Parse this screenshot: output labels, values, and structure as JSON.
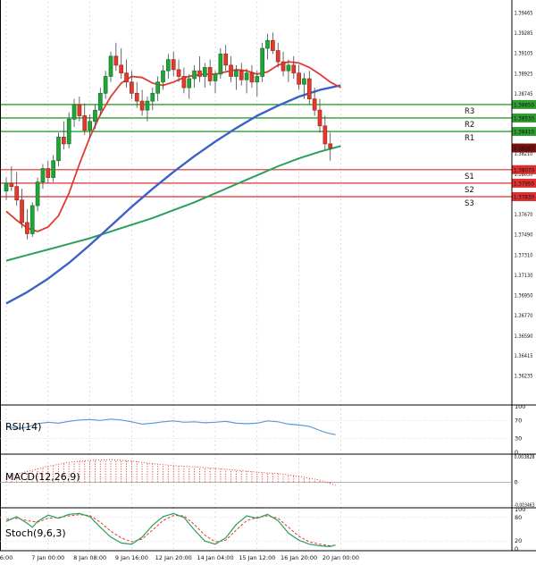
{
  "colors": {
    "up": "#22a437",
    "up_stroke": "#0c7a2c",
    "down": "#e13b2f",
    "down_stroke": "#a3271d",
    "wick": "#444444",
    "resistance": "#2e9e2e",
    "support": "#e02f2f",
    "current_badge": "#7a1010",
    "rsi_line": "#5b9bd5",
    "macd": "#e13b2f",
    "stoch_k": "#2aa05a",
    "stoch_d": "#e13b2f",
    "grid": "#cfcfcf",
    "subgrid": "#c9c9c9",
    "zero_line": "#9a9a9a",
    "separator": "#000000",
    "axis_text": "#111111",
    "badge_text": "#ffffff"
  },
  "chart_data": {
    "type": "candlestick",
    "grid": "vertical-dashed",
    "price_axis": {
      "top_price": 1.3958,
      "bottom_price": 1.36,
      "ticks": [
        1.39465,
        1.39285,
        1.39105,
        1.38925,
        1.38745,
        1.3821,
        1.3803,
        1.3767,
        1.3749,
        1.3731,
        1.3713,
        1.3695,
        1.3677,
        1.3659,
        1.36415,
        1.36235
      ]
    },
    "time_axis": {
      "labels": [
        {
          "i": 0,
          "t": "6:00"
        },
        {
          "i": 8,
          "t": "7 Jan 00:00"
        },
        {
          "i": 16,
          "t": "8 Jan 08:00"
        },
        {
          "i": 24,
          "t": "9 Jan 16:00"
        },
        {
          "i": 32,
          "t": "12 Jan 20:00"
        },
        {
          "i": 40,
          "t": "14 Jan 04:00"
        },
        {
          "i": 48,
          "t": "15 Jan 12:00"
        },
        {
          "i": 56,
          "t": "16 Jan 20:00"
        },
        {
          "i": 64,
          "t": "20 Jan 00:00"
        }
      ]
    },
    "levels": {
      "resistance": [
        {
          "label": "R3",
          "price": 1.3865
        },
        {
          "label": "R2",
          "price": 1.3853
        },
        {
          "label": "R1",
          "price": 1.3841
        }
      ],
      "support": [
        {
          "label": "S1",
          "price": 1.3807
        },
        {
          "label": "S2",
          "price": 1.3795
        },
        {
          "label": "S3",
          "price": 1.3783
        }
      ],
      "current_price": 1.38263
    },
    "candles": [
      [
        1.3788,
        1.38,
        1.378,
        1.3795
      ],
      [
        1.3795,
        1.381,
        1.3788,
        1.3792
      ],
      [
        1.3792,
        1.3805,
        1.3775,
        1.378
      ],
      [
        1.378,
        1.379,
        1.3755,
        1.376
      ],
      [
        1.376,
        1.3772,
        1.3745,
        1.375
      ],
      [
        1.375,
        1.3778,
        1.3747,
        1.3775
      ],
      [
        1.3775,
        1.38,
        1.377,
        1.3796
      ],
      [
        1.3796,
        1.3812,
        1.379,
        1.3808
      ],
      [
        1.3808,
        1.3815,
        1.3795,
        1.38
      ],
      [
        1.38,
        1.382,
        1.3796,
        1.3815
      ],
      [
        1.3815,
        1.384,
        1.381,
        1.3836
      ],
      [
        1.3836,
        1.385,
        1.3825,
        1.383
      ],
      [
        1.383,
        1.3858,
        1.3826,
        1.3852
      ],
      [
        1.3852,
        1.387,
        1.3845,
        1.3865
      ],
      [
        1.3865,
        1.3872,
        1.385,
        1.3855
      ],
      [
        1.3855,
        1.3866,
        1.3838,
        1.3842
      ],
      [
        1.3842,
        1.3856,
        1.3835,
        1.385
      ],
      [
        1.385,
        1.3865,
        1.3843,
        1.386
      ],
      [
        1.386,
        1.388,
        1.3855,
        1.3875
      ],
      [
        1.3875,
        1.3895,
        1.387,
        1.389
      ],
      [
        1.389,
        1.3912,
        1.3885,
        1.3908
      ],
      [
        1.3908,
        1.392,
        1.3895,
        1.39
      ],
      [
        1.39,
        1.3915,
        1.3888,
        1.3893
      ],
      [
        1.3893,
        1.3905,
        1.388,
        1.3885
      ],
      [
        1.3885,
        1.3895,
        1.387,
        1.3875
      ],
      [
        1.3875,
        1.3885,
        1.3862,
        1.3868
      ],
      [
        1.3868,
        1.3878,
        1.3855,
        1.386
      ],
      [
        1.386,
        1.3872,
        1.385,
        1.3868
      ],
      [
        1.3868,
        1.388,
        1.386,
        1.3875
      ],
      [
        1.3875,
        1.389,
        1.3868,
        1.3885
      ],
      [
        1.3885,
        1.39,
        1.3878,
        1.3895
      ],
      [
        1.3895,
        1.391,
        1.3888,
        1.3905
      ],
      [
        1.3905,
        1.3912,
        1.389,
        1.3896
      ],
      [
        1.3896,
        1.3905,
        1.3885,
        1.389
      ],
      [
        1.389,
        1.3898,
        1.3875,
        1.388
      ],
      [
        1.388,
        1.3892,
        1.387,
        1.3888
      ],
      [
        1.3888,
        1.39,
        1.388,
        1.3895
      ],
      [
        1.3895,
        1.3908,
        1.3885,
        1.389
      ],
      [
        1.389,
        1.3902,
        1.388,
        1.3898
      ],
      [
        1.3898,
        1.3905,
        1.3882,
        1.3886
      ],
      [
        1.3886,
        1.3895,
        1.3875,
        1.3892
      ],
      [
        1.3892,
        1.3915,
        1.3888,
        1.391
      ],
      [
        1.391,
        1.3918,
        1.3895,
        1.39
      ],
      [
        1.39,
        1.3908,
        1.3885,
        1.389
      ],
      [
        1.389,
        1.39,
        1.3878,
        1.3895
      ],
      [
        1.3895,
        1.3902,
        1.3882,
        1.3887
      ],
      [
        1.3887,
        1.3897,
        1.3875,
        1.3893
      ],
      [
        1.3893,
        1.39,
        1.388,
        1.3885
      ],
      [
        1.3885,
        1.3895,
        1.3872,
        1.389
      ],
      [
        1.389,
        1.392,
        1.3885,
        1.3915
      ],
      [
        1.3915,
        1.3928,
        1.3905,
        1.3922
      ],
      [
        1.3922,
        1.3929,
        1.391,
        1.3913
      ],
      [
        1.3913,
        1.392,
        1.3898,
        1.3903
      ],
      [
        1.3903,
        1.3912,
        1.389,
        1.3895
      ],
      [
        1.3895,
        1.3905,
        1.3885,
        1.39
      ],
      [
        1.39,
        1.3908,
        1.3888,
        1.3893
      ],
      [
        1.3893,
        1.39,
        1.3878,
        1.3883
      ],
      [
        1.3883,
        1.3893,
        1.387,
        1.3888
      ],
      [
        1.3888,
        1.3895,
        1.3865,
        1.387
      ],
      [
        1.387,
        1.388,
        1.3855,
        1.386
      ],
      [
        1.386,
        1.387,
        1.384,
        1.3846
      ],
      [
        1.3846,
        1.3855,
        1.3825,
        1.383
      ],
      [
        1.383,
        1.384,
        1.3815,
        1.38263
      ]
    ],
    "moving_averages": [
      {
        "name": "MA slow",
        "role": "slow",
        "color": "#2aa05a",
        "points": [
          [
            0,
            1.3726
          ],
          [
            4,
            1.3731
          ],
          [
            8,
            1.3736
          ],
          [
            12,
            1.3741
          ],
          [
            16,
            1.3746
          ],
          [
            20,
            1.3752
          ],
          [
            24,
            1.3758
          ],
          [
            28,
            1.3764
          ],
          [
            32,
            1.3771
          ],
          [
            36,
            1.3778
          ],
          [
            40,
            1.3786
          ],
          [
            44,
            1.3794
          ],
          [
            48,
            1.3802
          ],
          [
            52,
            1.381
          ],
          [
            56,
            1.3817
          ],
          [
            60,
            1.3823
          ],
          [
            64,
            1.3828
          ]
        ]
      },
      {
        "name": "MA medium",
        "role": "medium",
        "color": "#3a62c9",
        "points": [
          [
            0,
            1.3688
          ],
          [
            4,
            1.3698
          ],
          [
            8,
            1.371
          ],
          [
            12,
            1.3724
          ],
          [
            16,
            1.374
          ],
          [
            20,
            1.3757
          ],
          [
            24,
            1.3774
          ],
          [
            28,
            1.379
          ],
          [
            32,
            1.3805
          ],
          [
            36,
            1.3819
          ],
          [
            40,
            1.3832
          ],
          [
            44,
            1.3844
          ],
          [
            48,
            1.3855
          ],
          [
            52,
            1.3864
          ],
          [
            56,
            1.3872
          ],
          [
            60,
            1.3878
          ],
          [
            64,
            1.3882
          ]
        ]
      },
      {
        "name": "MA fast",
        "role": "fast",
        "color": "#e13b2f",
        "points": [
          [
            0,
            1.377
          ],
          [
            2,
            1.3762
          ],
          [
            4,
            1.3755
          ],
          [
            6,
            1.3752
          ],
          [
            8,
            1.3756
          ],
          [
            10,
            1.3766
          ],
          [
            12,
            1.3786
          ],
          [
            14,
            1.3812
          ],
          [
            16,
            1.3836
          ],
          [
            18,
            1.3856
          ],
          [
            20,
            1.3872
          ],
          [
            22,
            1.3884
          ],
          [
            24,
            1.389
          ],
          [
            26,
            1.3889
          ],
          [
            28,
            1.3884
          ],
          [
            30,
            1.3882
          ],
          [
            32,
            1.3885
          ],
          [
            34,
            1.3889
          ],
          [
            36,
            1.3891
          ],
          [
            38,
            1.3892
          ],
          [
            40,
            1.3892
          ],
          [
            42,
            1.3894
          ],
          [
            44,
            1.3896
          ],
          [
            46,
            1.3895
          ],
          [
            48,
            1.3892
          ],
          [
            50,
            1.3894
          ],
          [
            52,
            1.39
          ],
          [
            54,
            1.3903
          ],
          [
            56,
            1.3902
          ],
          [
            58,
            1.3898
          ],
          [
            60,
            1.3892
          ],
          [
            62,
            1.3885
          ],
          [
            64,
            1.388
          ]
        ]
      }
    ],
    "rsi": {
      "label": "RSI(14)",
      "scale": [
        100,
        70,
        30,
        0
      ],
      "guides": [
        70,
        30
      ],
      "points": [
        [
          0,
          58
        ],
        [
          2,
          52
        ],
        [
          4,
          55
        ],
        [
          6,
          63
        ],
        [
          8,
          66
        ],
        [
          10,
          64
        ],
        [
          12,
          68
        ],
        [
          14,
          71
        ],
        [
          16,
          72
        ],
        [
          18,
          70
        ],
        [
          20,
          73
        ],
        [
          22,
          71
        ],
        [
          24,
          67
        ],
        [
          26,
          62
        ],
        [
          28,
          64
        ],
        [
          30,
          67
        ],
        [
          32,
          69
        ],
        [
          34,
          66
        ],
        [
          36,
          67
        ],
        [
          38,
          65
        ],
        [
          40,
          66
        ],
        [
          42,
          68
        ],
        [
          44,
          64
        ],
        [
          46,
          63
        ],
        [
          48,
          64
        ],
        [
          50,
          69
        ],
        [
          52,
          67
        ],
        [
          54,
          62
        ],
        [
          56,
          60
        ],
        [
          58,
          57
        ],
        [
          60,
          48
        ],
        [
          61,
          44
        ],
        [
          62,
          41
        ],
        [
          63,
          39
        ]
      ]
    },
    "macd": {
      "label": "MACD(12,26,9)",
      "top_value": 0.003828,
      "bottom_value": -0.003463,
      "scale_labels": [
        "0.003828",
        "0",
        "-0.003463"
      ],
      "points": [
        [
          0,
          0.0008
        ],
        [
          4,
          0.0016
        ],
        [
          8,
          0.0024
        ],
        [
          12,
          0.003
        ],
        [
          16,
          0.0033
        ],
        [
          20,
          0.0034
        ],
        [
          24,
          0.0032
        ],
        [
          28,
          0.0028
        ],
        [
          32,
          0.0025
        ],
        [
          36,
          0.0023
        ],
        [
          40,
          0.0021
        ],
        [
          44,
          0.0018
        ],
        [
          48,
          0.0015
        ],
        [
          52,
          0.0013
        ],
        [
          56,
          0.0009
        ],
        [
          58,
          0.0006
        ],
        [
          60,
          0.0003
        ],
        [
          62,
          -0.0002
        ],
        [
          63,
          -0.0005
        ]
      ]
    },
    "stoch": {
      "label": "Stoch(9,6,3)",
      "scale": [
        100,
        80,
        20,
        0
      ],
      "guides": [
        80,
        20
      ],
      "k_points": [
        [
          0,
          70
        ],
        [
          2,
          82
        ],
        [
          4,
          65
        ],
        [
          5,
          55
        ],
        [
          6,
          70
        ],
        [
          8,
          86
        ],
        [
          10,
          78
        ],
        [
          12,
          88
        ],
        [
          14,
          90
        ],
        [
          16,
          82
        ],
        [
          18,
          55
        ],
        [
          20,
          30
        ],
        [
          22,
          15
        ],
        [
          24,
          12
        ],
        [
          26,
          30
        ],
        [
          28,
          60
        ],
        [
          30,
          82
        ],
        [
          32,
          90
        ],
        [
          34,
          80
        ],
        [
          36,
          48
        ],
        [
          38,
          20
        ],
        [
          40,
          12
        ],
        [
          42,
          28
        ],
        [
          44,
          62
        ],
        [
          46,
          84
        ],
        [
          48,
          78
        ],
        [
          50,
          88
        ],
        [
          52,
          72
        ],
        [
          54,
          40
        ],
        [
          56,
          22
        ],
        [
          58,
          12
        ],
        [
          60,
          8
        ],
        [
          62,
          6
        ],
        [
          63,
          10
        ]
      ],
      "d_points": [
        [
          0,
          75
        ],
        [
          2,
          78
        ],
        [
          4,
          72
        ],
        [
          6,
          68
        ],
        [
          8,
          78
        ],
        [
          10,
          80
        ],
        [
          12,
          84
        ],
        [
          14,
          87
        ],
        [
          16,
          85
        ],
        [
          18,
          68
        ],
        [
          20,
          45
        ],
        [
          22,
          28
        ],
        [
          24,
          18
        ],
        [
          26,
          25
        ],
        [
          28,
          48
        ],
        [
          30,
          72
        ],
        [
          32,
          85
        ],
        [
          34,
          84
        ],
        [
          36,
          62
        ],
        [
          38,
          35
        ],
        [
          40,
          18
        ],
        [
          42,
          22
        ],
        [
          44,
          48
        ],
        [
          46,
          72
        ],
        [
          48,
          80
        ],
        [
          50,
          84
        ],
        [
          52,
          78
        ],
        [
          54,
          55
        ],
        [
          56,
          32
        ],
        [
          58,
          18
        ],
        [
          60,
          12
        ],
        [
          62,
          8
        ],
        [
          63,
          9
        ]
      ]
    }
  }
}
